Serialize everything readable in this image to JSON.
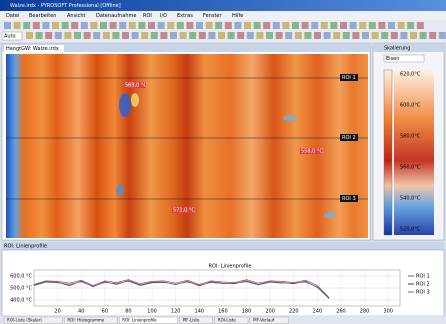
{
  "window": {
    "title": "Walze.irdx - PYROSOFT Professional [Offline]"
  },
  "menu": [
    "Datei",
    "Bearbeiten",
    "Ansicht",
    "Datenaufnahme",
    "ROI",
    "I/O",
    "Extras",
    "Fenster",
    "Hilfe"
  ],
  "toolbar": {
    "mode": "Auto"
  },
  "document_tab": "HangtGW: Walze.irdx",
  "image_labels": [
    {
      "text": "569,0 °C"
    },
    {
      "text": "558,0 °C"
    },
    {
      "text": "571,0 °C"
    },
    {
      "text": "ROI 1"
    },
    {
      "text": "ROI 2"
    },
    {
      "text": "ROI 3"
    }
  ],
  "side_panel": {
    "title": "Skalierung",
    "palette": "Eisen",
    "scale_labels": [
      "620,0°C",
      "600,0°C",
      "580,0°C",
      "560,0°C",
      "540,0°C",
      "520,0°C"
    ]
  },
  "bottom_panel": {
    "title": "ROI: Linienprofile"
  },
  "chart_data": {
    "type": "line",
    "title": "ROI: Linienprofile",
    "x": [
      0,
      10,
      20,
      30,
      40,
      50,
      60,
      70,
      80,
      90,
      100,
      110,
      120,
      130,
      140,
      150,
      160,
      170,
      180,
      190,
      200,
      210,
      220,
      230,
      240,
      250
    ],
    "series": [
      {
        "name": "ROI 1",
        "color": "#d03030",
        "values": [
          530,
          560,
          555,
          540,
          565,
          520,
          560,
          545,
          570,
          535,
          555,
          560,
          540,
          565,
          530,
          560,
          550,
          545,
          570,
          540,
          560,
          555,
          545,
          565,
          520,
          420
        ]
      },
      {
        "name": "ROI 2",
        "color": "#404040",
        "values": [
          525,
          552,
          548,
          520,
          558,
          510,
          552,
          530,
          562,
          525,
          548,
          550,
          528,
          556,
          518,
          552,
          540,
          535,
          560,
          530,
          552,
          545,
          535,
          556,
          505,
          410
        ]
      },
      {
        "name": "ROI 3",
        "color": "#5070c0",
        "values": [
          520,
          548,
          544,
          530,
          552,
          515,
          546,
          538,
          556,
          520,
          542,
          546,
          532,
          550,
          524,
          546,
          536,
          540,
          552,
          526,
          548,
          540,
          540,
          550,
          510,
          415
        ]
      }
    ],
    "xlim": [
      0,
      310
    ],
    "ylim": [
      350,
      650
    ],
    "xticks": [
      20,
      40,
      60,
      80,
      100,
      120,
      140,
      160,
      180,
      200,
      220,
      240,
      260,
      280,
      300
    ],
    "yticks": [
      {
        "value": 400,
        "label": "400,0 °C"
      },
      {
        "value": 500,
        "label": "500,0 °C"
      },
      {
        "value": 600,
        "label": "600,0 °C"
      }
    ],
    "grid": true
  },
  "status_tabs": [
    "ROI-Liste (Skalar)",
    "ROI: Histogramme",
    "ROI: Linienprofile",
    "PIF-Liste",
    "ROI-Liste",
    "PIF-Verlauf"
  ]
}
